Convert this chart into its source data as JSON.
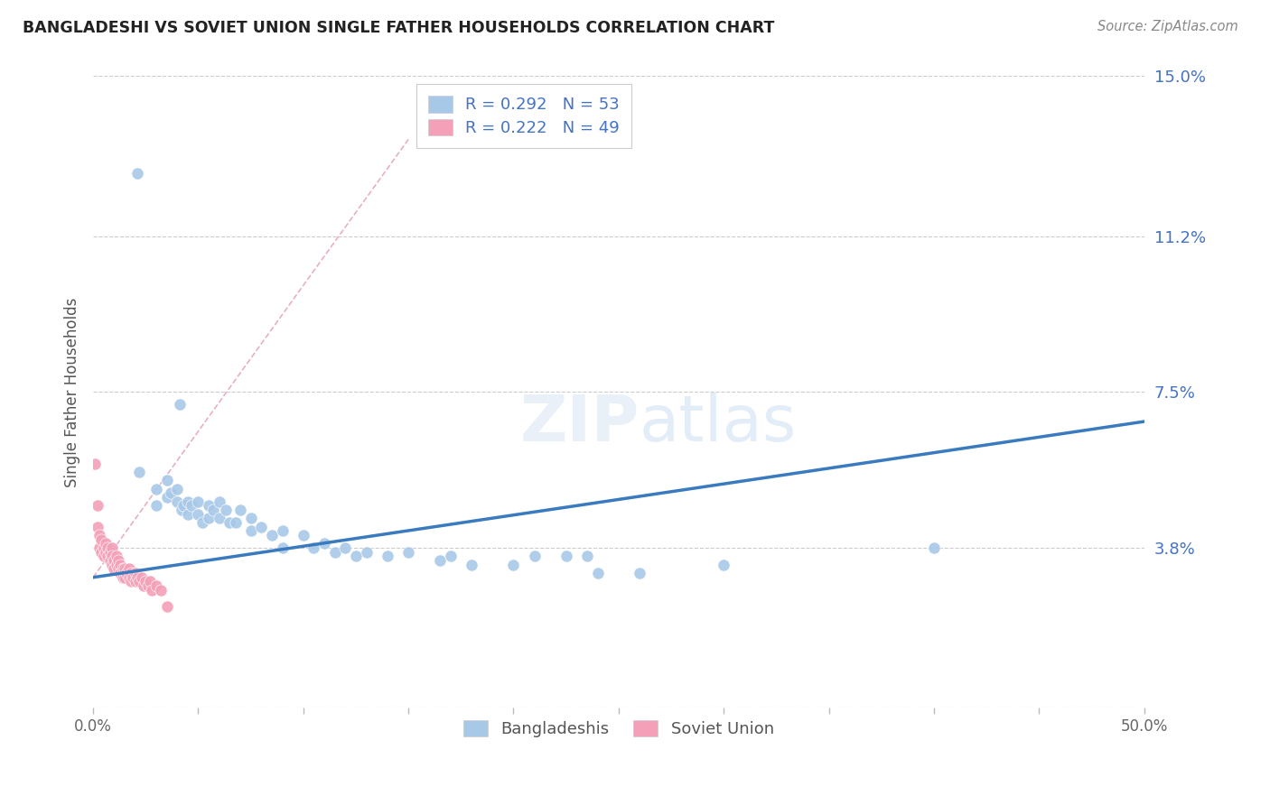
{
  "title": "BANGLADESHI VS SOVIET UNION SINGLE FATHER HOUSEHOLDS CORRELATION CHART",
  "source": "Source: ZipAtlas.com",
  "ylabel": "Single Father Households",
  "xlim": [
    0.0,
    0.5
  ],
  "ylim": [
    0.0,
    0.15
  ],
  "yticks": [
    0.0,
    0.038,
    0.075,
    0.112,
    0.15
  ],
  "ytick_labels": [
    "",
    "3.8%",
    "7.5%",
    "11.2%",
    "15.0%"
  ],
  "xtick_labels": [
    "0.0%",
    "",
    "",
    "",
    "",
    "",
    "",
    "",
    "",
    "",
    "50.0%"
  ],
  "r_bangladeshi": 0.292,
  "n_bangladeshi": 53,
  "r_soviet": 0.222,
  "n_soviet": 49,
  "blue_color": "#a8c8e8",
  "pink_color": "#f4a0b8",
  "line_blue": "#3a7abf",
  "line_pink": "#e8b0c0",
  "bg_color": "#ffffff",
  "grid_color": "#cccccc",
  "blue_scatter": [
    [
      0.021,
      0.127
    ],
    [
      0.041,
      0.072
    ],
    [
      0.022,
      0.056
    ],
    [
      0.03,
      0.052
    ],
    [
      0.035,
      0.054
    ],
    [
      0.03,
      0.048
    ],
    [
      0.035,
      0.05
    ],
    [
      0.037,
      0.051
    ],
    [
      0.04,
      0.052
    ],
    [
      0.04,
      0.049
    ],
    [
      0.042,
      0.047
    ],
    [
      0.043,
      0.048
    ],
    [
      0.045,
      0.049
    ],
    [
      0.045,
      0.046
    ],
    [
      0.047,
      0.048
    ],
    [
      0.05,
      0.049
    ],
    [
      0.05,
      0.046
    ],
    [
      0.052,
      0.044
    ],
    [
      0.055,
      0.048
    ],
    [
      0.055,
      0.045
    ],
    [
      0.057,
      0.047
    ],
    [
      0.06,
      0.049
    ],
    [
      0.06,
      0.045
    ],
    [
      0.063,
      0.047
    ],
    [
      0.065,
      0.044
    ],
    [
      0.068,
      0.044
    ],
    [
      0.07,
      0.047
    ],
    [
      0.075,
      0.045
    ],
    [
      0.075,
      0.042
    ],
    [
      0.08,
      0.043
    ],
    [
      0.085,
      0.041
    ],
    [
      0.09,
      0.042
    ],
    [
      0.09,
      0.038
    ],
    [
      0.1,
      0.041
    ],
    [
      0.105,
      0.038
    ],
    [
      0.11,
      0.039
    ],
    [
      0.115,
      0.037
    ],
    [
      0.12,
      0.038
    ],
    [
      0.125,
      0.036
    ],
    [
      0.13,
      0.037
    ],
    [
      0.14,
      0.036
    ],
    [
      0.15,
      0.037
    ],
    [
      0.165,
      0.035
    ],
    [
      0.17,
      0.036
    ],
    [
      0.18,
      0.034
    ],
    [
      0.2,
      0.034
    ],
    [
      0.21,
      0.036
    ],
    [
      0.225,
      0.036
    ],
    [
      0.235,
      0.036
    ],
    [
      0.24,
      0.032
    ],
    [
      0.26,
      0.032
    ],
    [
      0.3,
      0.034
    ],
    [
      0.4,
      0.038
    ]
  ],
  "pink_scatter": [
    [
      0.001,
      0.058
    ],
    [
      0.002,
      0.048
    ],
    [
      0.002,
      0.043
    ],
    [
      0.003,
      0.041
    ],
    [
      0.003,
      0.038
    ],
    [
      0.004,
      0.04
    ],
    [
      0.004,
      0.037
    ],
    [
      0.005,
      0.038
    ],
    [
      0.005,
      0.036
    ],
    [
      0.006,
      0.039
    ],
    [
      0.006,
      0.037
    ],
    [
      0.007,
      0.038
    ],
    [
      0.007,
      0.036
    ],
    [
      0.008,
      0.037
    ],
    [
      0.008,
      0.035
    ],
    [
      0.009,
      0.038
    ],
    [
      0.009,
      0.036
    ],
    [
      0.009,
      0.034
    ],
    [
      0.01,
      0.035
    ],
    [
      0.01,
      0.033
    ],
    [
      0.011,
      0.036
    ],
    [
      0.011,
      0.034
    ],
    [
      0.012,
      0.035
    ],
    [
      0.012,
      0.033
    ],
    [
      0.013,
      0.034
    ],
    [
      0.013,
      0.032
    ],
    [
      0.014,
      0.033
    ],
    [
      0.014,
      0.031
    ],
    [
      0.015,
      0.033
    ],
    [
      0.015,
      0.031
    ],
    [
      0.016,
      0.032
    ],
    [
      0.017,
      0.033
    ],
    [
      0.017,
      0.031
    ],
    [
      0.018,
      0.032
    ],
    [
      0.018,
      0.03
    ],
    [
      0.019,
      0.031
    ],
    [
      0.02,
      0.032
    ],
    [
      0.02,
      0.03
    ],
    [
      0.021,
      0.031
    ],
    [
      0.022,
      0.03
    ],
    [
      0.023,
      0.031
    ],
    [
      0.024,
      0.029
    ],
    [
      0.025,
      0.03
    ],
    [
      0.026,
      0.029
    ],
    [
      0.027,
      0.03
    ],
    [
      0.028,
      0.028
    ],
    [
      0.03,
      0.029
    ],
    [
      0.032,
      0.028
    ],
    [
      0.035,
      0.024
    ]
  ],
  "blue_line_x": [
    0.0,
    0.5
  ],
  "blue_line_y": [
    0.031,
    0.068
  ],
  "pink_line_x": [
    0.0,
    0.15
  ],
  "pink_line_y": [
    0.031,
    0.135
  ]
}
